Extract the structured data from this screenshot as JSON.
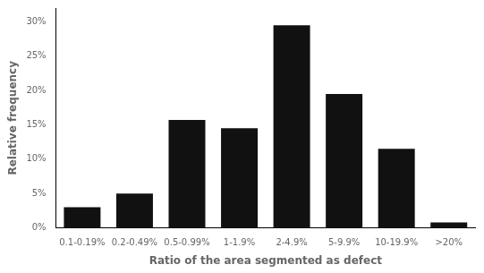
{
  "chart_data": {
    "type": "bar",
    "categories": [
      "0.1-0.19%",
      "0.2-0.49%",
      "0.5-0.99%",
      "1-1.9%",
      "2-4.9%",
      "5-9.9%",
      "10-19.9%",
      ">20%"
    ],
    "values": [
      3.0,
      5.0,
      15.7,
      14.5,
      29.5,
      19.5,
      11.5,
      0.8
    ],
    "color": "#111111",
    "xlabel": "Ratio of the area segmented as defect",
    "ylabel": "Relative frequency",
    "ylim": [
      0,
      32
    ],
    "yticks": [
      {
        "value": 0,
        "label": "0%"
      },
      {
        "value": 5,
        "label": "5%"
      },
      {
        "value": 10,
        "label": "10%"
      },
      {
        "value": 15,
        "label": "15%"
      },
      {
        "value": 20,
        "label": "20%"
      },
      {
        "value": 25,
        "label": "25%"
      },
      {
        "value": 30,
        "label": "30%"
      }
    ],
    "grid": false
  }
}
